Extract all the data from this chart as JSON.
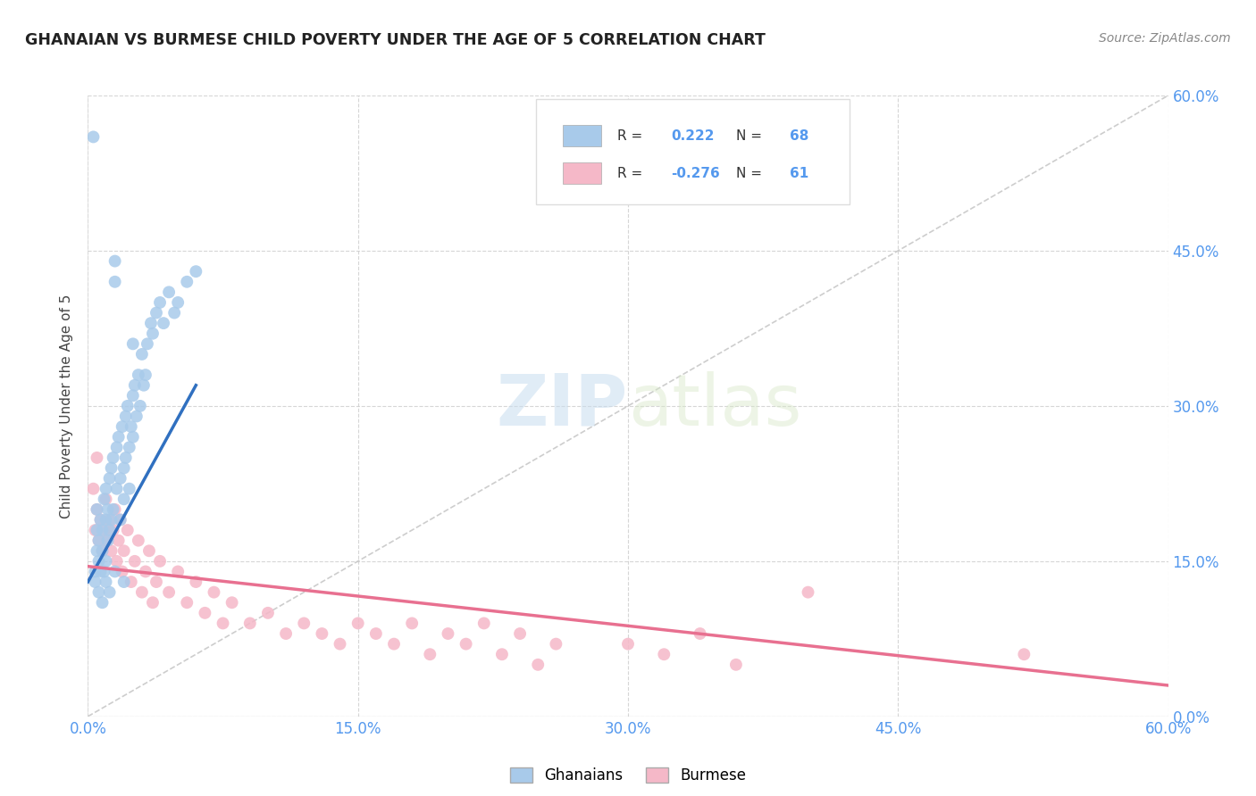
{
  "title": "GHANAIAN VS BURMESE CHILD POVERTY UNDER THE AGE OF 5 CORRELATION CHART",
  "source": "Source: ZipAtlas.com",
  "ylabel": "Child Poverty Under the Age of 5",
  "xlim": [
    0.0,
    0.6
  ],
  "ylim": [
    0.0,
    0.6
  ],
  "xticks": [
    0.0,
    0.15,
    0.3,
    0.45,
    0.6
  ],
  "yticks": [
    0.0,
    0.15,
    0.3,
    0.45,
    0.6
  ],
  "xticklabels": [
    "0.0%",
    "15.0%",
    "30.0%",
    "45.0%",
    "60.0%"
  ],
  "yticklabels": [
    "0.0%",
    "15.0%",
    "30.0%",
    "45.0%",
    "60.0%"
  ],
  "ghanaian_color": "#A8CAEA",
  "burmese_color": "#F5B8C8",
  "ghanaian_line_color": "#3070C0",
  "burmese_line_color": "#E87090",
  "diag_line_color": "#C8C8C8",
  "R_ghana": 0.222,
  "N_ghana": 68,
  "R_burma": -0.276,
  "N_burma": 61,
  "background_color": "#FFFFFF",
  "grid_color": "#CCCCCC",
  "tick_color": "#5599EE",
  "watermark_color": "#D8EEFA",
  "ghana_x": [
    0.003,
    0.004,
    0.005,
    0.005,
    0.005,
    0.006,
    0.006,
    0.007,
    0.007,
    0.008,
    0.008,
    0.009,
    0.009,
    0.01,
    0.01,
    0.01,
    0.011,
    0.011,
    0.012,
    0.012,
    0.013,
    0.013,
    0.014,
    0.014,
    0.015,
    0.015,
    0.016,
    0.016,
    0.017,
    0.018,
    0.018,
    0.019,
    0.02,
    0.02,
    0.021,
    0.021,
    0.022,
    0.023,
    0.023,
    0.024,
    0.025,
    0.025,
    0.026,
    0.027,
    0.028,
    0.029,
    0.03,
    0.031,
    0.032,
    0.033,
    0.035,
    0.036,
    0.038,
    0.04,
    0.042,
    0.045,
    0.048,
    0.05,
    0.055,
    0.06,
    0.004,
    0.006,
    0.008,
    0.01,
    0.012,
    0.015,
    0.02,
    0.025
  ],
  "ghana_y": [
    0.56,
    0.14,
    0.2,
    0.18,
    0.16,
    0.17,
    0.15,
    0.19,
    0.14,
    0.18,
    0.16,
    0.21,
    0.14,
    0.22,
    0.19,
    0.15,
    0.2,
    0.17,
    0.23,
    0.18,
    0.24,
    0.19,
    0.25,
    0.2,
    0.42,
    0.44,
    0.26,
    0.22,
    0.27,
    0.23,
    0.19,
    0.28,
    0.24,
    0.21,
    0.29,
    0.25,
    0.3,
    0.26,
    0.22,
    0.28,
    0.31,
    0.27,
    0.32,
    0.29,
    0.33,
    0.3,
    0.35,
    0.32,
    0.33,
    0.36,
    0.38,
    0.37,
    0.39,
    0.4,
    0.38,
    0.41,
    0.39,
    0.4,
    0.42,
    0.43,
    0.13,
    0.12,
    0.11,
    0.13,
    0.12,
    0.14,
    0.13,
    0.36
  ],
  "burma_x": [
    0.003,
    0.004,
    0.005,
    0.006,
    0.007,
    0.008,
    0.009,
    0.01,
    0.011,
    0.012,
    0.013,
    0.014,
    0.015,
    0.016,
    0.017,
    0.018,
    0.019,
    0.02,
    0.022,
    0.024,
    0.026,
    0.028,
    0.03,
    0.032,
    0.034,
    0.036,
    0.038,
    0.04,
    0.045,
    0.05,
    0.055,
    0.06,
    0.065,
    0.07,
    0.075,
    0.08,
    0.09,
    0.1,
    0.11,
    0.12,
    0.13,
    0.14,
    0.15,
    0.16,
    0.17,
    0.18,
    0.19,
    0.2,
    0.21,
    0.22,
    0.23,
    0.24,
    0.25,
    0.26,
    0.3,
    0.32,
    0.34,
    0.36,
    0.4,
    0.52,
    0.005
  ],
  "burma_y": [
    0.22,
    0.18,
    0.2,
    0.17,
    0.19,
    0.16,
    0.18,
    0.21,
    0.17,
    0.19,
    0.16,
    0.18,
    0.2,
    0.15,
    0.17,
    0.19,
    0.14,
    0.16,
    0.18,
    0.13,
    0.15,
    0.17,
    0.12,
    0.14,
    0.16,
    0.11,
    0.13,
    0.15,
    0.12,
    0.14,
    0.11,
    0.13,
    0.1,
    0.12,
    0.09,
    0.11,
    0.09,
    0.1,
    0.08,
    0.09,
    0.08,
    0.07,
    0.09,
    0.08,
    0.07,
    0.09,
    0.06,
    0.08,
    0.07,
    0.09,
    0.06,
    0.08,
    0.05,
    0.07,
    0.07,
    0.06,
    0.08,
    0.05,
    0.12,
    0.06,
    0.25
  ],
  "ghana_trend_x": [
    0.0,
    0.06
  ],
  "ghana_trend_y": [
    0.13,
    0.32
  ],
  "burma_trend_x": [
    0.0,
    0.6
  ],
  "burma_trend_y": [
    0.145,
    0.03
  ]
}
